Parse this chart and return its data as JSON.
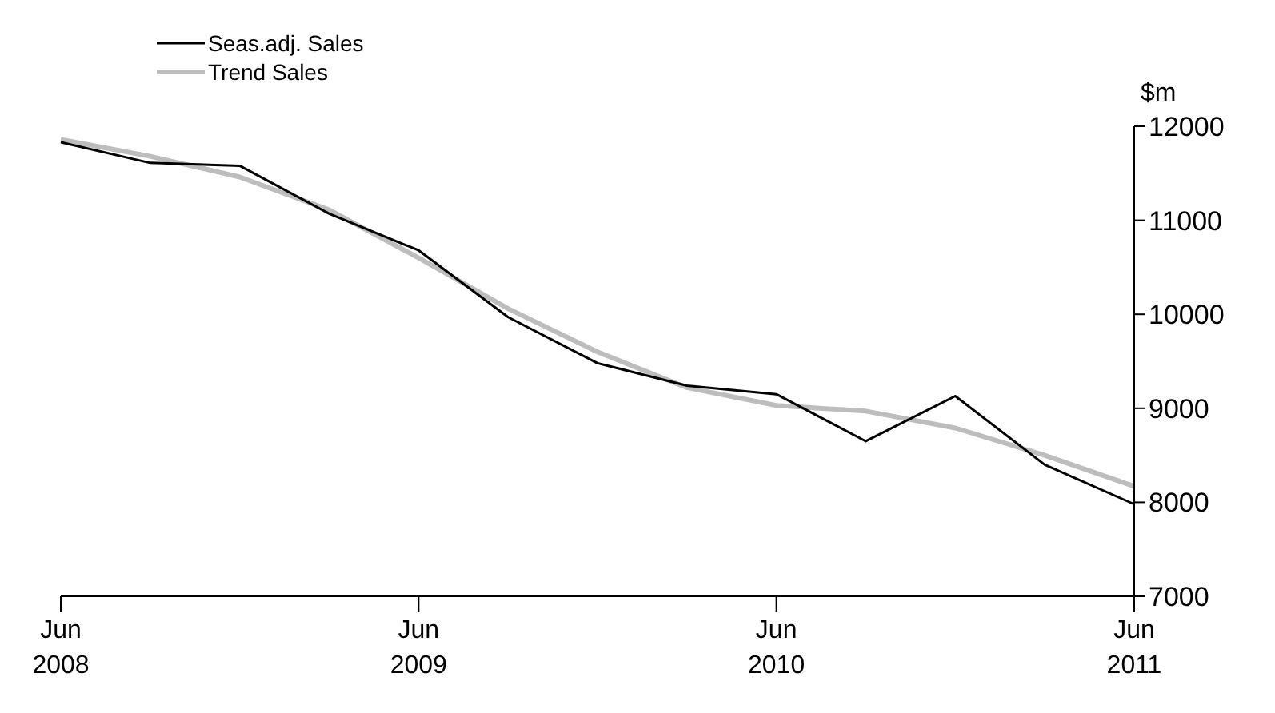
{
  "chart_data": {
    "type": "line",
    "ylabel": "$m",
    "categories": [
      "Jun 2008",
      null,
      null,
      null,
      "Jun 2009",
      null,
      null,
      null,
      "Jun 2010",
      null,
      null,
      null,
      "Jun 2011"
    ],
    "series": [
      {
        "name": "Seas.adj. Sales",
        "color": "#000000",
        "values": [
          11830,
          11610,
          11580,
          11070,
          10680,
          9970,
          9480,
          9240,
          9150,
          8650,
          9130,
          8400,
          7980
        ]
      },
      {
        "name": "Trend Sales",
        "color": "#bdbdbd",
        "values": [
          11860,
          11680,
          11460,
          11110,
          10600,
          10060,
          9600,
          9220,
          9030,
          8970,
          8790,
          8500,
          8170
        ]
      }
    ],
    "ylim": [
      7000,
      12000
    ],
    "yticks": [
      7000,
      8000,
      9000,
      10000,
      11000,
      12000
    ],
    "grid": false,
    "legend": "top",
    "marker": "none",
    "line_style": "solid"
  }
}
